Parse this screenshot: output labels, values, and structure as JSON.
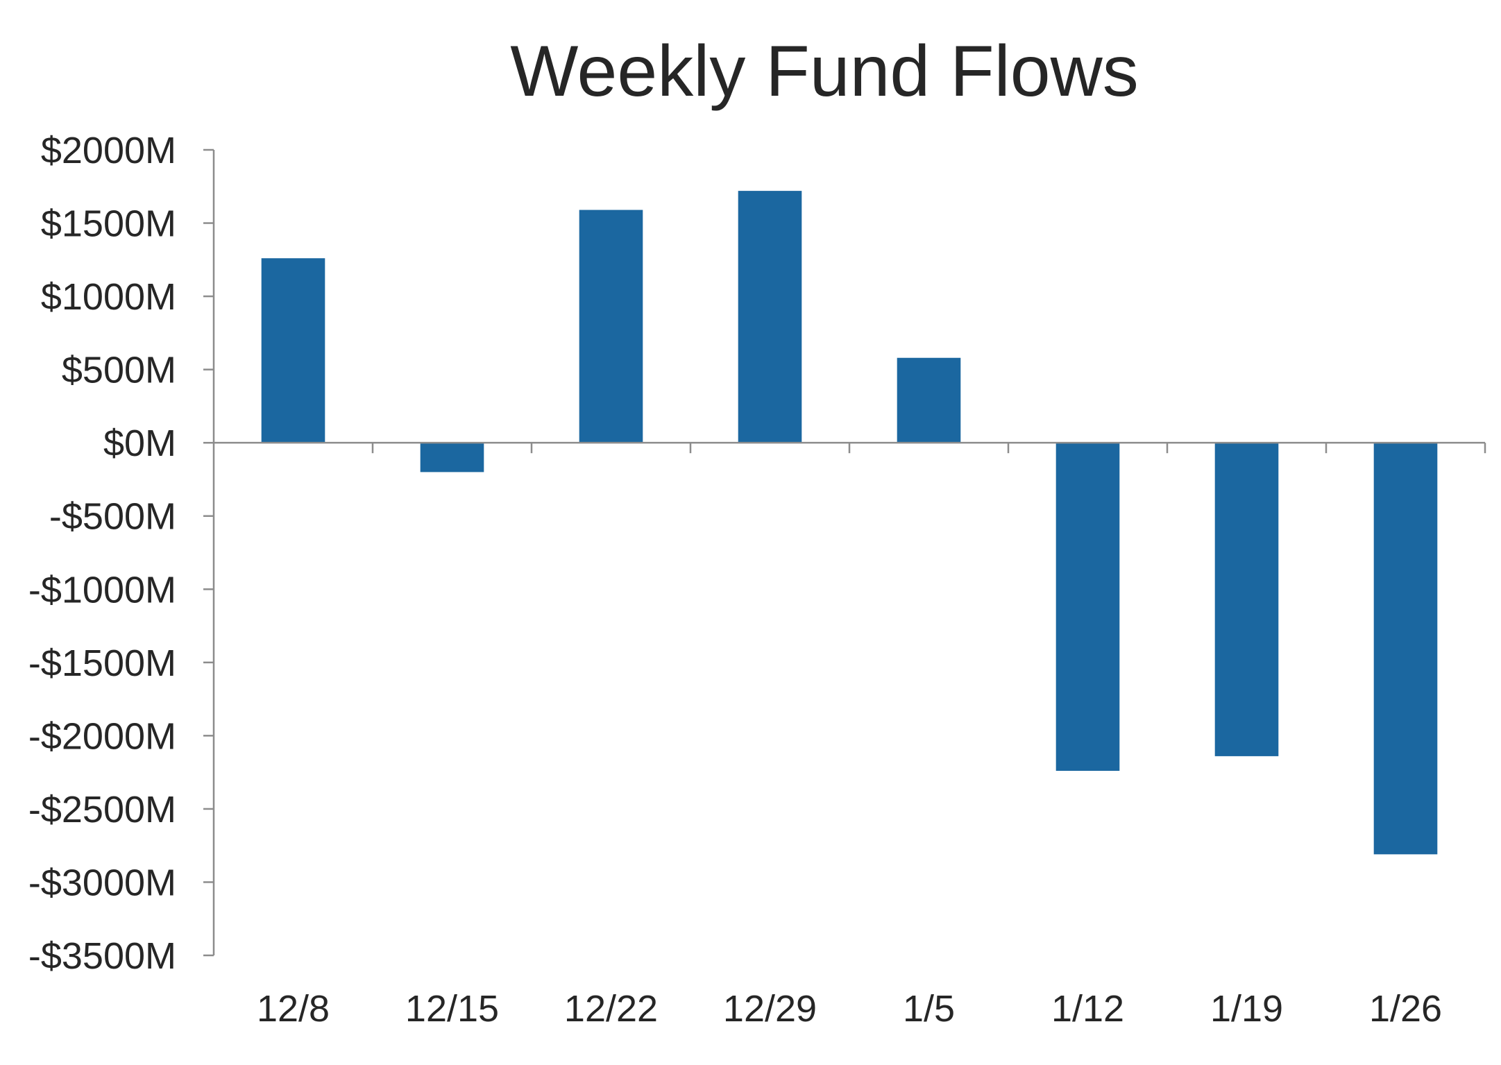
{
  "chart_data": {
    "type": "bar",
    "title": "Weekly Fund Flows",
    "xlabel": "",
    "ylabel": "",
    "categories": [
      "12/8",
      "12/15",
      "12/22",
      "12/29",
      "1/5",
      "1/12",
      "1/19",
      "1/26"
    ],
    "values": [
      1260,
      -200,
      1590,
      1720,
      580,
      -2240,
      -2140,
      -2810
    ],
    "ylim": [
      -3500,
      2000
    ],
    "y_ticks": [
      2000,
      1500,
      1000,
      500,
      0,
      -500,
      -1000,
      -1500,
      -2000,
      -2500,
      -3000,
      -3500
    ],
    "y_tick_labels": [
      "$2000M",
      "$1500M",
      "$1000M",
      "$500M",
      "$0M",
      "-$500M",
      "-$1000M",
      "-$1500M",
      "-$2000M",
      "-$2500M",
      "-$3000M",
      "-$3500M"
    ],
    "bar_color": "#1b67a0",
    "axis_color": "#8c8c8c",
    "text_color": "#262626",
    "grid": false,
    "legend": "none"
  }
}
